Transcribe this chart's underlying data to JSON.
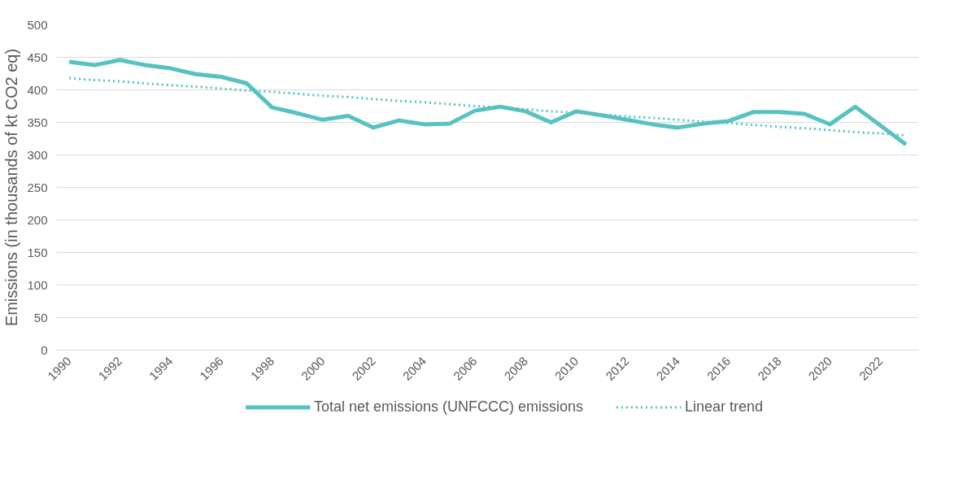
{
  "chart_data": {
    "type": "line",
    "ylabel": "Emissions (in thousands of kt CO2 eq)",
    "categories": [
      "1990",
      null,
      "1992",
      null,
      "1994",
      null,
      "1996",
      null,
      "1998",
      null,
      "2000",
      null,
      "2002",
      null,
      "2004",
      null,
      "2006",
      null,
      "2008",
      null,
      "2010",
      null,
      "2012",
      null,
      "2014",
      null,
      "2016",
      null,
      "2018",
      null,
      "2020",
      null,
      "2022",
      null
    ],
    "series": [
      {
        "name": "Total net emissions (UNFCCC) emissions",
        "color": "#56c2c2",
        "line_style": "solid",
        "values": [
          443,
          438,
          446,
          438,
          433,
          424,
          420,
          410,
          373,
          364,
          354,
          360,
          342,
          353,
          347,
          348,
          368,
          374,
          367,
          350,
          367,
          361,
          354,
          347,
          342,
          348,
          352,
          366,
          366,
          363,
          347,
          374,
          345,
          316
        ]
      },
      {
        "name": "Linear trend",
        "color": "#56c2c2",
        "line_style": "dotted",
        "values": [
          418,
          415,
          413,
          410,
          407,
          405,
          402,
          399,
          397,
          394,
          391,
          389,
          386,
          383,
          381,
          378,
          375,
          373,
          370,
          367,
          365,
          362,
          359,
          357,
          354,
          351,
          349,
          346,
          343,
          341,
          338,
          335,
          333,
          330
        ]
      }
    ],
    "ylim": [
      0,
      500
    ],
    "yticks": [
      0,
      50,
      100,
      150,
      200,
      250,
      300,
      350,
      400,
      450,
      500
    ],
    "grid": "y",
    "legend": "bottom"
  }
}
